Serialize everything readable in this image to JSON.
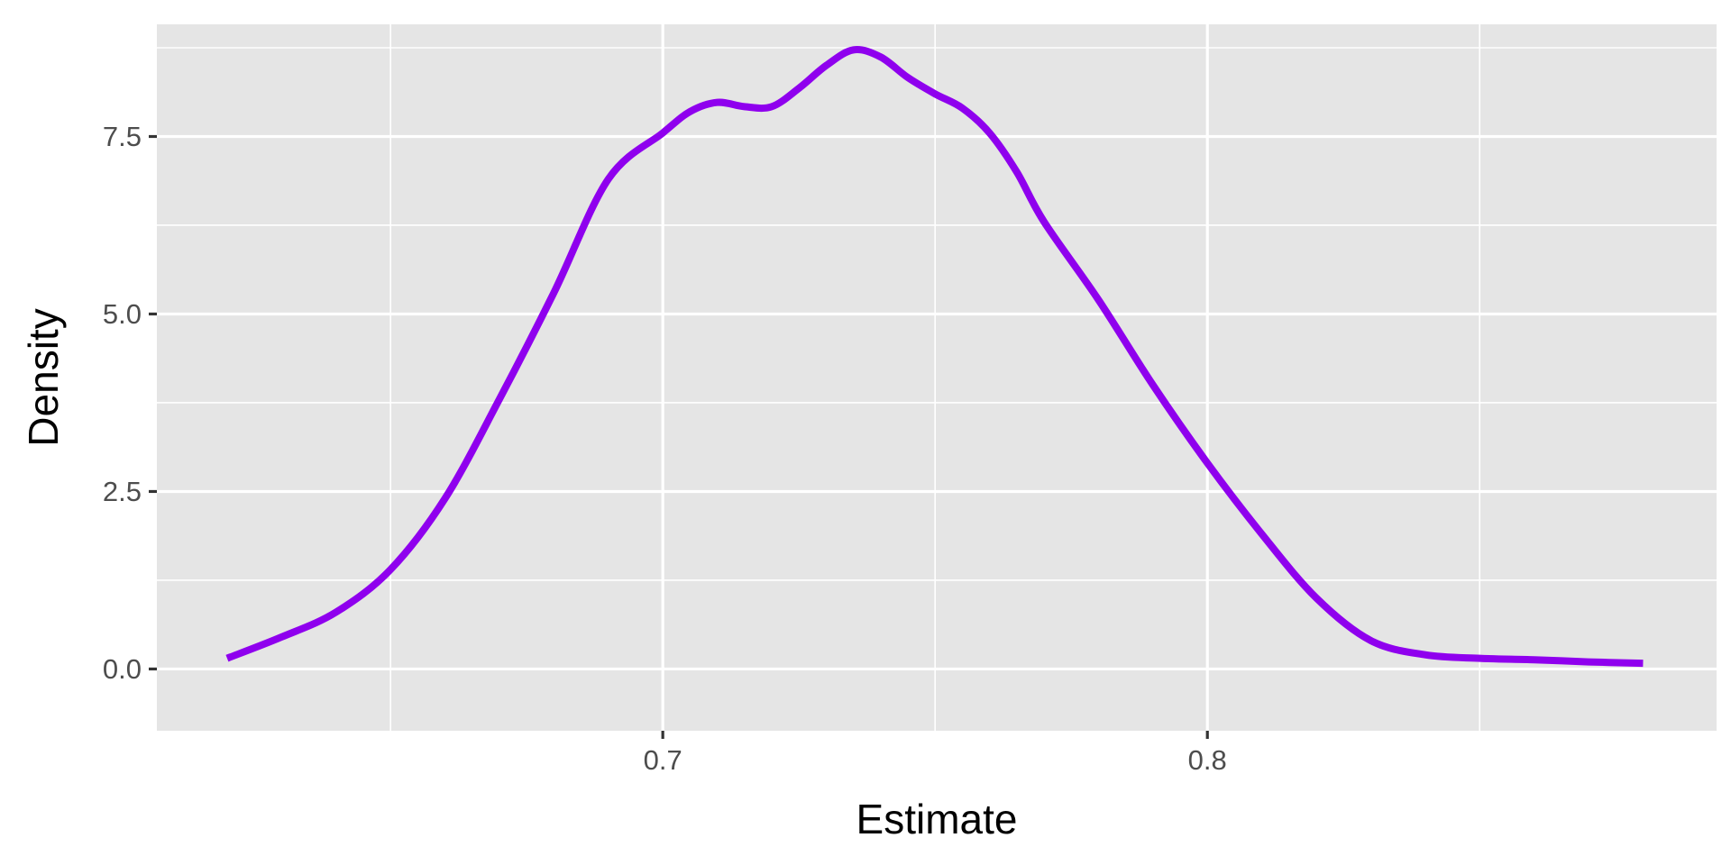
{
  "chart_data": {
    "type": "line",
    "title": "",
    "xlabel": "Estimate",
    "ylabel": "Density",
    "xlim": [
      0.6071,
      0.8935
    ],
    "ylim": [
      -0.87,
      9.08
    ],
    "x_ticks": [
      0.7,
      0.8
    ],
    "x_tick_labels": [
      "0.7",
      "0.8"
    ],
    "x_minor_ticks": [
      0.65,
      0.75,
      0.85
    ],
    "y_ticks": [
      0.0,
      2.5,
      5.0,
      7.5
    ],
    "y_tick_labels": [
      "0.0",
      "2.5",
      "5.0",
      "7.5"
    ],
    "y_minor_ticks": [
      1.25,
      3.75,
      6.25,
      8.75
    ],
    "grid": true,
    "legend": "none",
    "colors": {
      "panel_background": "#e5e5e5",
      "grid_line": "#ffffff",
      "series": "#8f00ee",
      "tick_mark": "#333333",
      "tick_label": "#4d4d4d",
      "axis_title": "#000000"
    },
    "series": [
      {
        "x": [
          0.62,
          0.63,
          0.64,
          0.65,
          0.66,
          0.67,
          0.68,
          0.69,
          0.7,
          0.705,
          0.71,
          0.715,
          0.72,
          0.725,
          0.73,
          0.735,
          0.74,
          0.745,
          0.75,
          0.755,
          0.76,
          0.765,
          0.77,
          0.78,
          0.79,
          0.8,
          0.81,
          0.82,
          0.83,
          0.84,
          0.85,
          0.86,
          0.87,
          0.88
        ],
        "y": [
          0.15,
          0.45,
          0.8,
          1.4,
          2.4,
          3.8,
          5.3,
          6.9,
          7.55,
          7.85,
          7.98,
          7.92,
          7.92,
          8.18,
          8.5,
          8.72,
          8.62,
          8.33,
          8.1,
          7.9,
          7.55,
          7.0,
          6.3,
          5.2,
          4.0,
          2.9,
          1.9,
          1.0,
          0.4,
          0.2,
          0.15,
          0.13,
          0.1,
          0.08
        ]
      }
    ]
  }
}
